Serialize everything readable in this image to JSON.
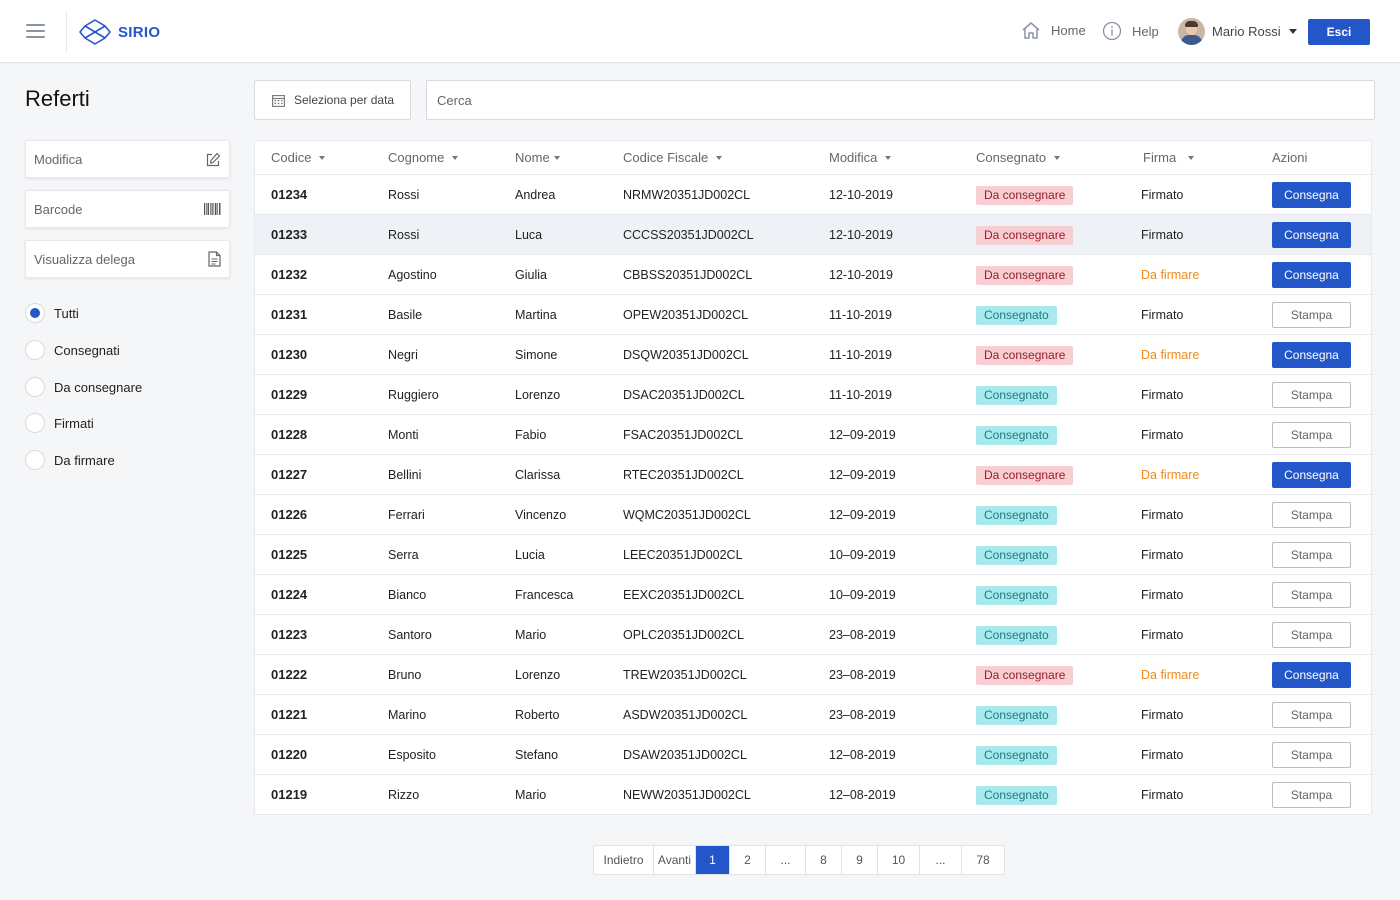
{
  "header": {
    "brand": "SIRIO",
    "nav": [
      {
        "label": "Home",
        "icon": "home-icon"
      },
      {
        "label": "Help",
        "icon": "info-icon"
      }
    ],
    "user_name": "Mario Rossi",
    "logout_label": "Esci"
  },
  "sidebar": {
    "title": "Referti",
    "actions": [
      {
        "label": "Modifica",
        "icon": "edit-icon"
      },
      {
        "label": "Barcode",
        "icon": "barcode-icon"
      },
      {
        "label": "Visualizza delega",
        "icon": "document-icon"
      }
    ],
    "filters": [
      {
        "label": "Tutti",
        "checked": true
      },
      {
        "label": "Consegnati",
        "checked": false
      },
      {
        "label": "Da consegnare",
        "checked": false
      },
      {
        "label": "Firmati",
        "checked": false
      },
      {
        "label": "Da firmare",
        "checked": false
      }
    ]
  },
  "toolbar": {
    "date_label": "Seleziona per data",
    "search_placeholder": "Cerca"
  },
  "table": {
    "columns": [
      "Codice",
      "Cognome",
      "Nome",
      "Codice Fiscale",
      "Modifica",
      "Consegnato",
      "Firma",
      "Azioni"
    ],
    "rows": [
      {
        "codice": "01234",
        "cognome": "Rossi",
        "nome": "Andrea",
        "cf": "NRMW20351JD002CL",
        "modifica": "12-10-2019",
        "consegnato": "Da consegnare",
        "firma": "Firmato",
        "azione": "Consegna"
      },
      {
        "codice": "01233",
        "cognome": "Rossi",
        "nome": "Luca",
        "cf": "CCCSS20351JD002CL",
        "modifica": "12-10-2019",
        "consegnato": "Da consegnare",
        "firma": "Firmato",
        "azione": "Consegna"
      },
      {
        "codice": "01232",
        "cognome": "Agostino",
        "nome": "Giulia",
        "cf": "CBBSS20351JD002CL",
        "modifica": "12-10-2019",
        "consegnato": "Da consegnare",
        "firma": "Da firmare",
        "azione": "Consegna"
      },
      {
        "codice": "01231",
        "cognome": "Basile",
        "nome": "Martina",
        "cf": "OPEW20351JD002CL",
        "modifica": "11-10-2019",
        "consegnato": "Consegnato",
        "firma": "Firmato",
        "azione": "Stampa"
      },
      {
        "codice": "01230",
        "cognome": "Negri",
        "nome": "Simone",
        "cf": "DSQW20351JD002CL",
        "modifica": "11-10-2019",
        "consegnato": "Da consegnare",
        "firma": "Da firmare",
        "azione": "Consegna"
      },
      {
        "codice": "01229",
        "cognome": "Ruggiero",
        "nome": "Lorenzo",
        "cf": "DSAC20351JD002CL",
        "modifica": "11-10-2019",
        "consegnato": "Consegnato",
        "firma": "Firmato",
        "azione": "Stampa"
      },
      {
        "codice": "01228",
        "cognome": "Monti",
        "nome": "Fabio",
        "cf": "FSAC20351JD002CL",
        "modifica": "12–09-2019",
        "consegnato": "Consegnato",
        "firma": "Firmato",
        "azione": "Stampa"
      },
      {
        "codice": "01227",
        "cognome": "Bellini",
        "nome": "Clarissa",
        "cf": "RTEC20351JD002CL",
        "modifica": "12–09-2019",
        "consegnato": "Da consegnare",
        "firma": "Da firmare",
        "azione": "Consegna"
      },
      {
        "codice": "01226",
        "cognome": "Ferrari",
        "nome": "Vincenzo",
        "cf": "WQMC20351JD002CL",
        "modifica": "12–09-2019",
        "consegnato": "Consegnato",
        "firma": "Firmato",
        "azione": "Stampa"
      },
      {
        "codice": "01225",
        "cognome": "Serra",
        "nome": "Lucia",
        "cf": "LEEC20351JD002CL",
        "modifica": "10–09-2019",
        "consegnato": "Consegnato",
        "firma": "Firmato",
        "azione": "Stampa"
      },
      {
        "codice": "01224",
        "cognome": "Bianco",
        "nome": "Francesca",
        "cf": "EEXC20351JD002CL",
        "modifica": "10–09-2019",
        "consegnato": "Consegnato",
        "firma": "Firmato",
        "azione": "Stampa"
      },
      {
        "codice": "01223",
        "cognome": "Santoro",
        "nome": "Mario",
        "cf": "OPLC20351JD002CL",
        "modifica": "23–08-2019",
        "consegnato": "Consegnato",
        "firma": "Firmato",
        "azione": "Stampa"
      },
      {
        "codice": "01222",
        "cognome": "Bruno",
        "nome": "Lorenzo",
        "cf": "TREW20351JD002CL",
        "modifica": "23–08-2019",
        "consegnato": "Da consegnare",
        "firma": "Da firmare",
        "azione": "Consegna"
      },
      {
        "codice": "01221",
        "cognome": "Marino",
        "nome": "Roberto",
        "cf": "ASDW20351JD002CL",
        "modifica": "23–08-2019",
        "consegnato": "Consegnato",
        "firma": "Firmato",
        "azione": "Stampa"
      },
      {
        "codice": "01220",
        "cognome": "Esposito",
        "nome": "Stefano",
        "cf": "DSAW20351JD002CL",
        "modifica": "12–08-2019",
        "consegnato": "Consegnato",
        "firma": "Firmato",
        "azione": "Stampa"
      },
      {
        "codice": "01219",
        "cognome": "Rizzo",
        "nome": "Mario",
        "cf": "NEWW20351JD002CL",
        "modifica": "12–08-2019",
        "consegnato": "Consegnato",
        "firma": "Firmato",
        "azione": "Stampa"
      }
    ],
    "highlighted_row": "01233"
  },
  "pagination": {
    "items": [
      {
        "label": "Indietro",
        "active": false
      },
      {
        "label": "Avanti",
        "active": false
      },
      {
        "label": "1",
        "active": true
      },
      {
        "label": "2",
        "active": false
      },
      {
        "label": "...",
        "active": false
      },
      {
        "label": "8",
        "active": false
      },
      {
        "label": "9",
        "active": false
      },
      {
        "label": "10",
        "active": false
      },
      {
        "label": "...",
        "active": false
      },
      {
        "label": "78",
        "active": false
      }
    ]
  },
  "colors": {
    "primary": "#2357c9",
    "badge_red_bg": "#f7cfd2",
    "badge_red_text": "#9c1c2a",
    "badge_teal_bg": "#a7e9ec",
    "badge_teal_text": "#1e7a86",
    "warning_text": "#f18b16"
  }
}
